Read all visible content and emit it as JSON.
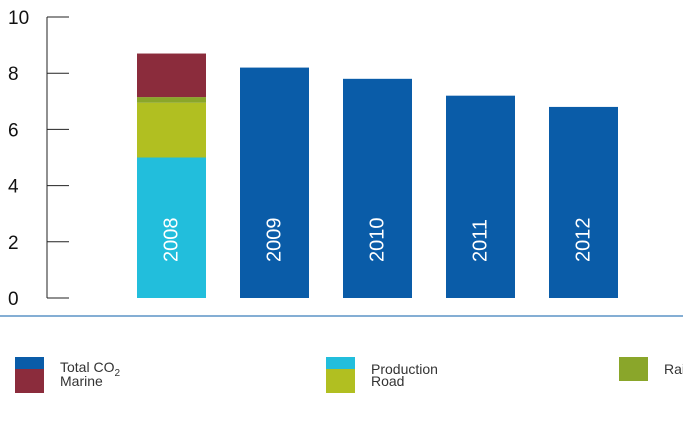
{
  "chart_data": {
    "type": "bar",
    "stacked": true,
    "categories": [
      "2008",
      "2009",
      "2010",
      "2011",
      "2012"
    ],
    "ylim": [
      0,
      10
    ],
    "yticks": [
      0,
      2,
      4,
      6,
      8,
      10
    ],
    "series": [
      {
        "name": "Total CO2",
        "color": "#0a5ca8",
        "values": [
          null,
          8.2,
          7.8,
          7.2,
          6.8
        ]
      },
      {
        "name": "Production",
        "color": "#22bedc",
        "values": [
          5.0,
          null,
          null,
          null,
          null
        ]
      },
      {
        "name": "Road",
        "color": "#b1bf21",
        "values": [
          1.95,
          null,
          null,
          null,
          null
        ]
      },
      {
        "name": "Rail",
        "color": "#8aa62a",
        "values": [
          0.2,
          null,
          null,
          null,
          null
        ]
      },
      {
        "name": "Marine",
        "color": "#8b2c3c",
        "values": [
          1.55,
          null,
          null,
          null,
          null
        ]
      }
    ],
    "grid": false,
    "legend_position": "bottom"
  },
  "legend": [
    {
      "text": "Total CO",
      "sub": "2",
      "color": "#0a5ca8"
    },
    {
      "text": "Production",
      "sub": "",
      "color": "#22bedc"
    },
    {
      "text": "Rail",
      "sub": "",
      "color": "#8aa62a"
    },
    {
      "text": "Marine",
      "sub": "",
      "color": "#8b2c3c"
    },
    {
      "text": "Road",
      "sub": "",
      "color": "#b1bf21"
    }
  ],
  "separator_color": "#0a5ca8"
}
